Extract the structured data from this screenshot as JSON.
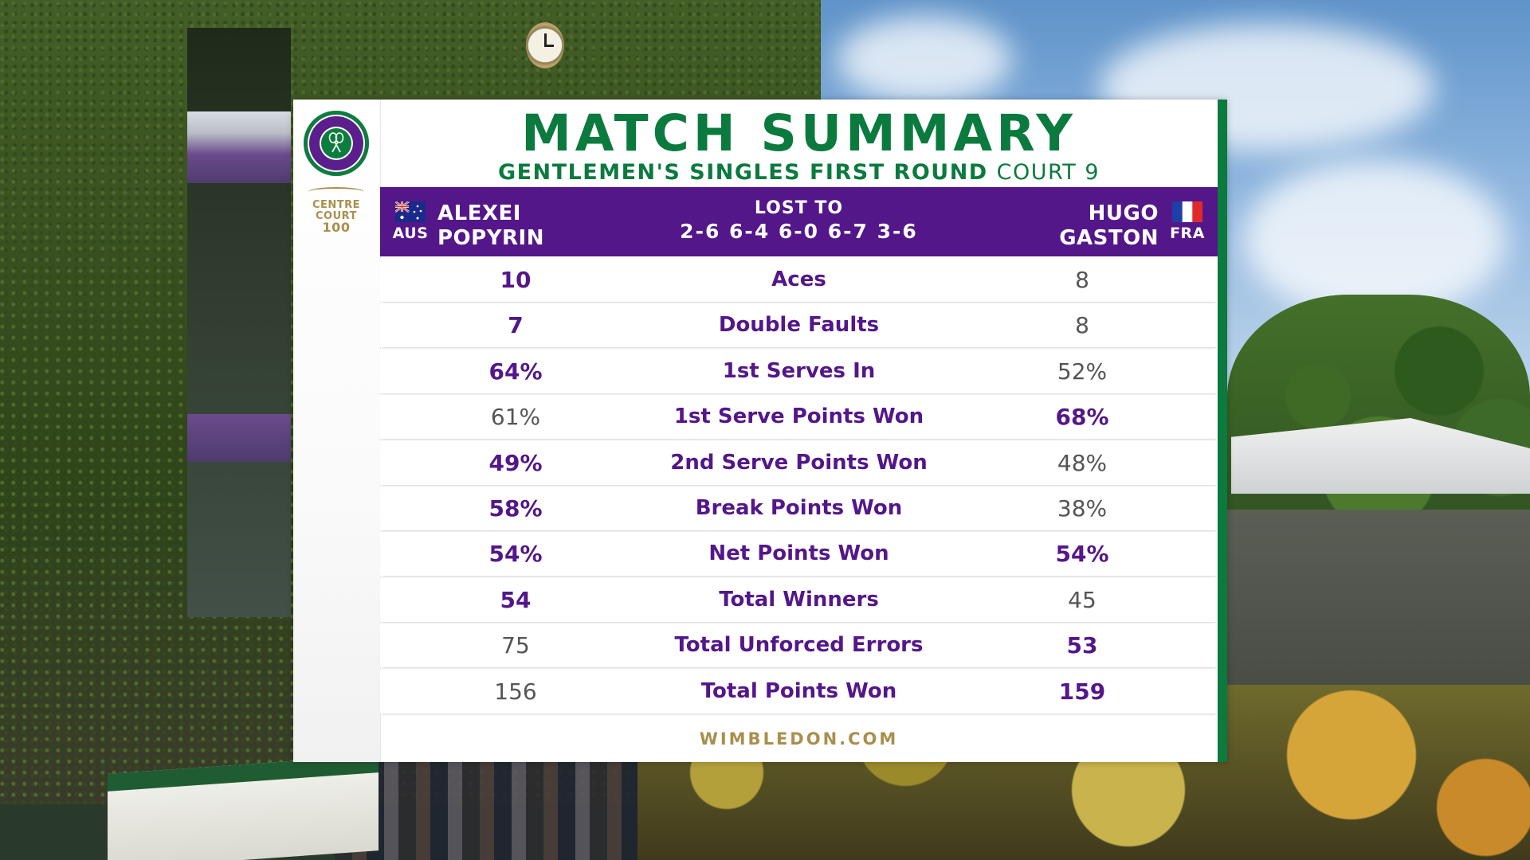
{
  "header": {
    "title": "MATCH SUMMARY",
    "round": "GENTLEMEN'S SINGLES FIRST ROUND",
    "court": "COURT 9"
  },
  "branding": {
    "centre_court_line1": "CENTRE",
    "centre_court_line2": "COURT",
    "centre_court_line3": "100",
    "footer": "WIMBLEDON.COM"
  },
  "player1": {
    "first": "ALEXEI",
    "last": "POPYRIN",
    "country": "AUS"
  },
  "player2": {
    "first": "HUGO",
    "last": "GASTON",
    "country": "FRA"
  },
  "result": {
    "text": "LOST TO",
    "score": "2-6 6-4 6-0 6-7 3-6"
  },
  "stats": [
    {
      "label": "Aces",
      "p1": "10",
      "p2": "8",
      "p1_strong": true,
      "p2_strong": false
    },
    {
      "label": "Double Faults",
      "p1": "7",
      "p2": "8",
      "p1_strong": true,
      "p2_strong": false
    },
    {
      "label": "1st Serves In",
      "p1": "64%",
      "p2": "52%",
      "p1_strong": true,
      "p2_strong": false
    },
    {
      "label": "1st Serve Points Won",
      "p1": "61%",
      "p2": "68%",
      "p1_strong": false,
      "p2_strong": true
    },
    {
      "label": "2nd Serve Points Won",
      "p1": "49%",
      "p2": "48%",
      "p1_strong": true,
      "p2_strong": false
    },
    {
      "label": "Break Points Won",
      "p1": "58%",
      "p2": "38%",
      "p1_strong": true,
      "p2_strong": false
    },
    {
      "label": "Net Points Won",
      "p1": "54%",
      "p2": "54%",
      "p1_strong": true,
      "p2_strong": true
    },
    {
      "label": "Total Winners",
      "p1": "54",
      "p2": "45",
      "p1_strong": true,
      "p2_strong": false
    },
    {
      "label": "Total Unforced Errors",
      "p1": "75",
      "p2": "53",
      "p1_strong": false,
      "p2_strong": true
    },
    {
      "label": "Total Points Won",
      "p1": "156",
      "p2": "159",
      "p1_strong": false,
      "p2_strong": true
    }
  ],
  "colors": {
    "purple": "#54178a",
    "green": "#0b7a3e",
    "gold": "#a98f4d"
  }
}
